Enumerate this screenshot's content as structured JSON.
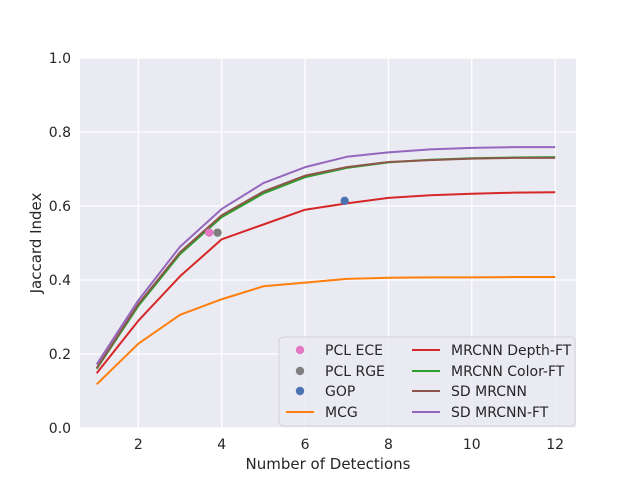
{
  "chart_data": {
    "type": "line",
    "title": "",
    "xlabel": "Number of Detections",
    "ylabel": "Jaccard Index",
    "xlim": [
      0.6,
      12.5
    ],
    "ylim": [
      0.0,
      1.0
    ],
    "xticks": [
      2,
      4,
      6,
      8,
      10,
      12
    ],
    "yticks": [
      0.0,
      0.2,
      0.4,
      0.6,
      0.8,
      1.0
    ],
    "grid": true,
    "legend_position": "lower-right",
    "x": [
      1,
      2,
      3,
      4,
      5,
      6,
      7,
      8,
      9,
      10,
      11,
      12
    ],
    "series": [
      {
        "name": "MCG",
        "color": "#ff7f0e",
        "values": [
          0.118,
          0.228,
          0.306,
          0.348,
          0.383,
          0.393,
          0.403,
          0.406,
          0.407,
          0.407,
          0.408,
          0.408
        ]
      },
      {
        "name": "MRCNN Depth-FT",
        "color": "#d62728",
        "values": [
          0.148,
          0.29,
          0.41,
          0.51,
          0.55,
          0.59,
          0.607,
          0.622,
          0.629,
          0.633,
          0.636,
          0.637
        ]
      },
      {
        "name": "MRCNN Color-FT",
        "color": "#2ca02c",
        "values": [
          0.16,
          0.33,
          0.47,
          0.57,
          0.634,
          0.678,
          0.703,
          0.718,
          0.725,
          0.729,
          0.731,
          0.732
        ]
      },
      {
        "name": "SD MRCNN",
        "color": "#8c564b",
        "values": [
          0.162,
          0.335,
          0.475,
          0.575,
          0.639,
          0.682,
          0.705,
          0.719,
          0.724,
          0.728,
          0.73,
          0.73
        ]
      },
      {
        "name": "SD MRCNN-FT",
        "color": "#9467bd",
        "values": [
          0.172,
          0.345,
          0.49,
          0.592,
          0.662,
          0.705,
          0.733,
          0.745,
          0.753,
          0.757,
          0.759,
          0.759
        ]
      }
    ],
    "points": [
      {
        "name": "PCL ECE",
        "color": "#e377c2",
        "x": 3.7,
        "y": 0.528
      },
      {
        "name": "PCL RGE",
        "color": "#7f7f7f",
        "x": 3.9,
        "y": 0.528
      },
      {
        "name": "GOP",
        "color": "#4c72b0",
        "x": 6.95,
        "y": 0.614
      }
    ],
    "legend": [
      {
        "name": "PCL ECE",
        "kind": "marker",
        "color": "#e377c2"
      },
      {
        "name": "PCL RGE",
        "kind": "marker",
        "color": "#7f7f7f"
      },
      {
        "name": "GOP",
        "kind": "marker",
        "color": "#4c72b0"
      },
      {
        "name": "MCG",
        "kind": "line",
        "color": "#ff7f0e"
      },
      {
        "name": "MRCNN Depth-FT",
        "kind": "line",
        "color": "#d62728"
      },
      {
        "name": "MRCNN Color-FT",
        "kind": "line",
        "color": "#2ca02c"
      },
      {
        "name": "SD MRCNN",
        "kind": "line",
        "color": "#8c564b"
      },
      {
        "name": "SD MRCNN-FT",
        "kind": "line",
        "color": "#9467bd"
      }
    ]
  }
}
